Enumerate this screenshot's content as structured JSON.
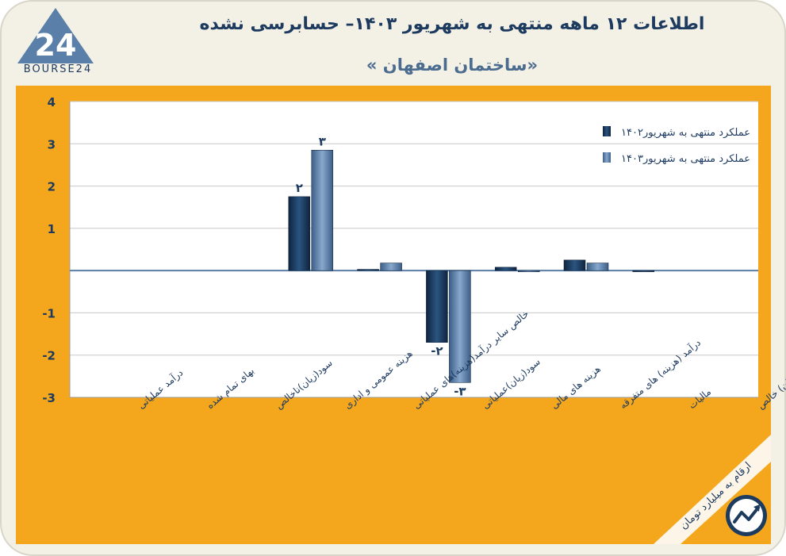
{
  "header": {
    "title": "اطلاعات ۱۲ ماهه منتهی به شهریور ۱۴۰۳– حسابرسی نشده",
    "subtitle": "«ساختمان اصفهان »",
    "logo_text": "BOURSE24",
    "logo_mark": "24"
  },
  "footer_note": "ارقام به میلیارد تومان",
  "icon": "trend-chart-icon",
  "colors": {
    "background_frame": "#f4a71d",
    "plot_bg": "#ffffff",
    "series_1402": "#1b3a5c",
    "series_1403": "#5b7ea6",
    "text_dark": "#1d3a5f"
  },
  "chart_data": {
    "type": "bar",
    "categories": [
      "درآمد عملیاتی",
      "بهای تمام شده",
      "سود(زیان)ناخالص",
      "هزینه عمومی و اداری",
      "خالص سایر درآمد(هزینه)های عملیاتی",
      "سود(زیان)عملیاتی",
      "هزینه های مالی",
      "درآمد (هزینه) های متفرقه",
      "مالیات",
      "سود(زیان) خالص"
    ],
    "series": [
      {
        "name": "عملکرد منتهی به شهریور۱۴۰۲",
        "values": [
          0,
          0,
          0,
          1.75,
          0.03,
          -1.7,
          0.08,
          0.25,
          -0.02,
          0
        ]
      },
      {
        "name": "عملکرد منتهی به شهریور۱۴۰۳",
        "values": [
          0,
          0,
          0,
          2.85,
          0.18,
          -2.65,
          -0.03,
          0.18,
          0,
          0
        ]
      }
    ],
    "data_labels": [
      {
        "series": 0,
        "category": 3,
        "text": "۲"
      },
      {
        "series": 1,
        "category": 3,
        "text": "۳"
      },
      {
        "series": 0,
        "category": 5,
        "text": "-۲"
      },
      {
        "series": 1,
        "category": 5,
        "text": "-۳"
      }
    ],
    "yticks": [
      4,
      3,
      2,
      1,
      -1,
      -2,
      -3
    ],
    "ytick_labels": [
      "4",
      "3",
      "2",
      "1",
      "-1",
      "-2",
      "-3"
    ],
    "ylim": [
      -3,
      4
    ],
    "grid": true,
    "legend_position": "top-right",
    "xlabel": "",
    "ylabel": ""
  }
}
